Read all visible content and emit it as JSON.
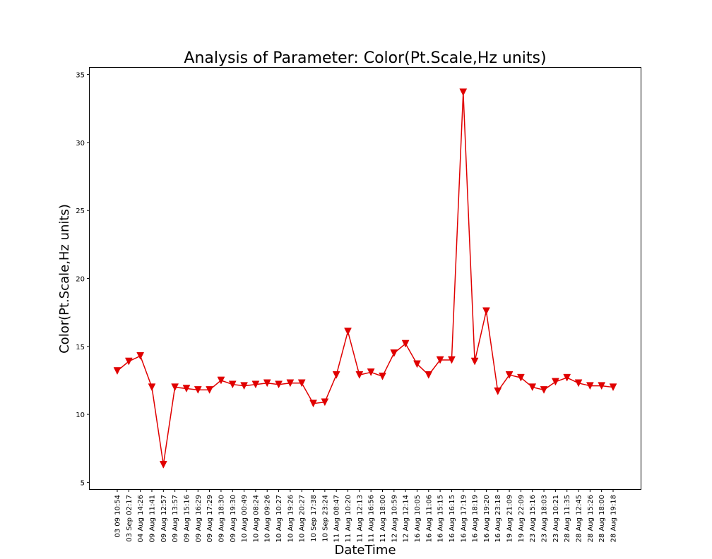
{
  "chart_data": {
    "type": "line",
    "title": "Analysis of Parameter: Color(Pt.Scale,Hz units)",
    "xlabel": "DateTime",
    "ylabel": "Color(Pt.Scale,Hz units)",
    "ylim": [
      4.5,
      35.5
    ],
    "yticks": [
      5,
      10,
      15,
      20,
      25,
      30,
      35
    ],
    "grid": false,
    "marker": "triangle-down",
    "color": "#e00000",
    "categories": [
      "03 09 10:54",
      "03 Sep 02:17",
      "04 Aug 14:26",
      "09 Aug 11:41",
      "09 Aug 12:57",
      "09 Aug 13:57",
      "09 Aug 15:16",
      "09 Aug 16:29",
      "09 Aug 17:29",
      "09 Aug 18:30",
      "09 Aug 19:30",
      "10 Aug 00:49",
      "10 Aug 08:24",
      "10 Aug 09:26",
      "10 Aug 10:27",
      "10 Aug 19:26",
      "10 Aug 20:27",
      "10 Sep 17:38",
      "10 Sep 23:24",
      "11 Aug 08:47",
      "11 Aug 10:20",
      "11 Aug 12:13",
      "11 Aug 16:56",
      "11 Aug 18:00",
      "12 Aug 10:59",
      "12 Aug 12:14",
      "16 Aug 10:05",
      "16 Aug 11:06",
      "16 Aug 15:15",
      "16 Aug 16:15",
      "16 Aug 17:19",
      "16 Aug 18:19",
      "16 Aug 19:20",
      "16 Aug 23:18",
      "19 Aug 21:09",
      "19 Aug 22:09",
      "23 Aug 15:16",
      "23 Aug 18:03",
      "23 Aug 10:21",
      "28 Aug 11:35",
      "28 Aug 12:45",
      "28 Aug 15:26",
      "28 Aug 18:00",
      "28 Aug 19:18"
    ],
    "values": [
      13.2,
      13.9,
      14.3,
      12.0,
      6.3,
      12.0,
      11.9,
      11.8,
      11.8,
      12.5,
      12.2,
      12.1,
      12.2,
      12.3,
      12.2,
      12.3,
      12.3,
      10.8,
      10.9,
      12.9,
      16.1,
      12.9,
      13.1,
      12.8,
      14.5,
      15.2,
      13.7,
      12.9,
      14.0,
      14.0,
      33.7,
      13.9,
      17.6,
      11.7,
      12.9,
      12.7,
      12.0,
      11.8,
      12.4,
      12.7,
      12.3,
      12.1,
      12.1,
      12.0
    ]
  }
}
